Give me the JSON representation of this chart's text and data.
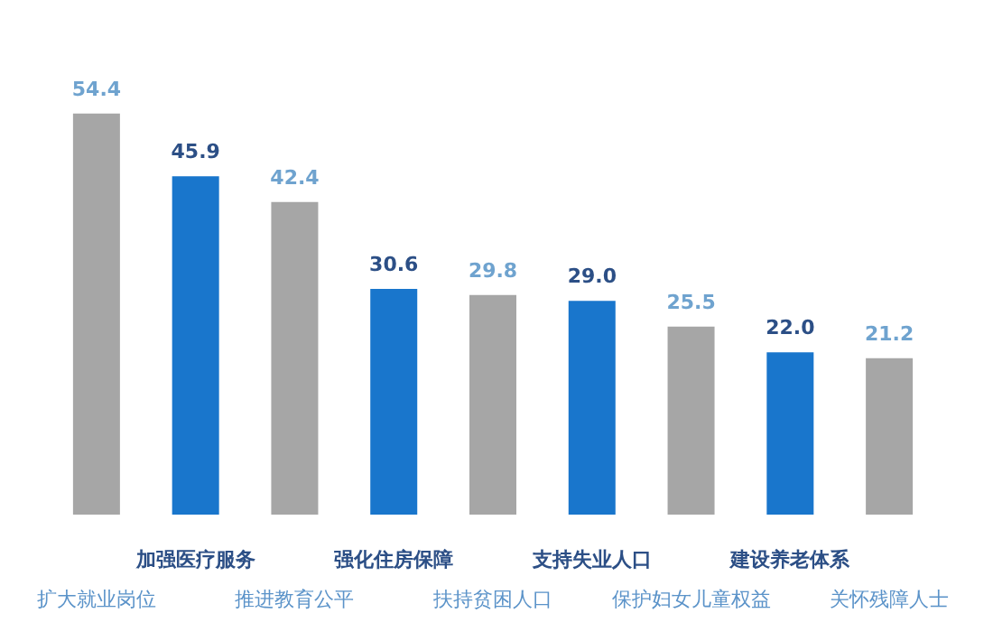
{
  "chart_data": {
    "type": "bar",
    "categories": [
      "扩大就业岗位",
      "加强医疗服务",
      "推进教育公平",
      "强化住房保障",
      "扶持贫困人口",
      "支持失业人口",
      "保护妇女儿童权益",
      "建设养老体系",
      "关怀残障人士"
    ],
    "values": [
      54.4,
      45.9,
      42.4,
      30.6,
      29.8,
      29.0,
      25.5,
      22.0,
      21.2
    ],
    "value_labels": [
      "54.4",
      "45.9",
      "42.4",
      "30.6",
      "29.8",
      "29.0",
      "25.5",
      "22.0",
      "21.2"
    ],
    "colors": [
      "#a6a6a6",
      "#1976cc",
      "#a6a6a6",
      "#1976cc",
      "#a6a6a6",
      "#1976cc",
      "#a6a6a6",
      "#1976cc",
      "#a6a6a6"
    ],
    "grid": false
  }
}
